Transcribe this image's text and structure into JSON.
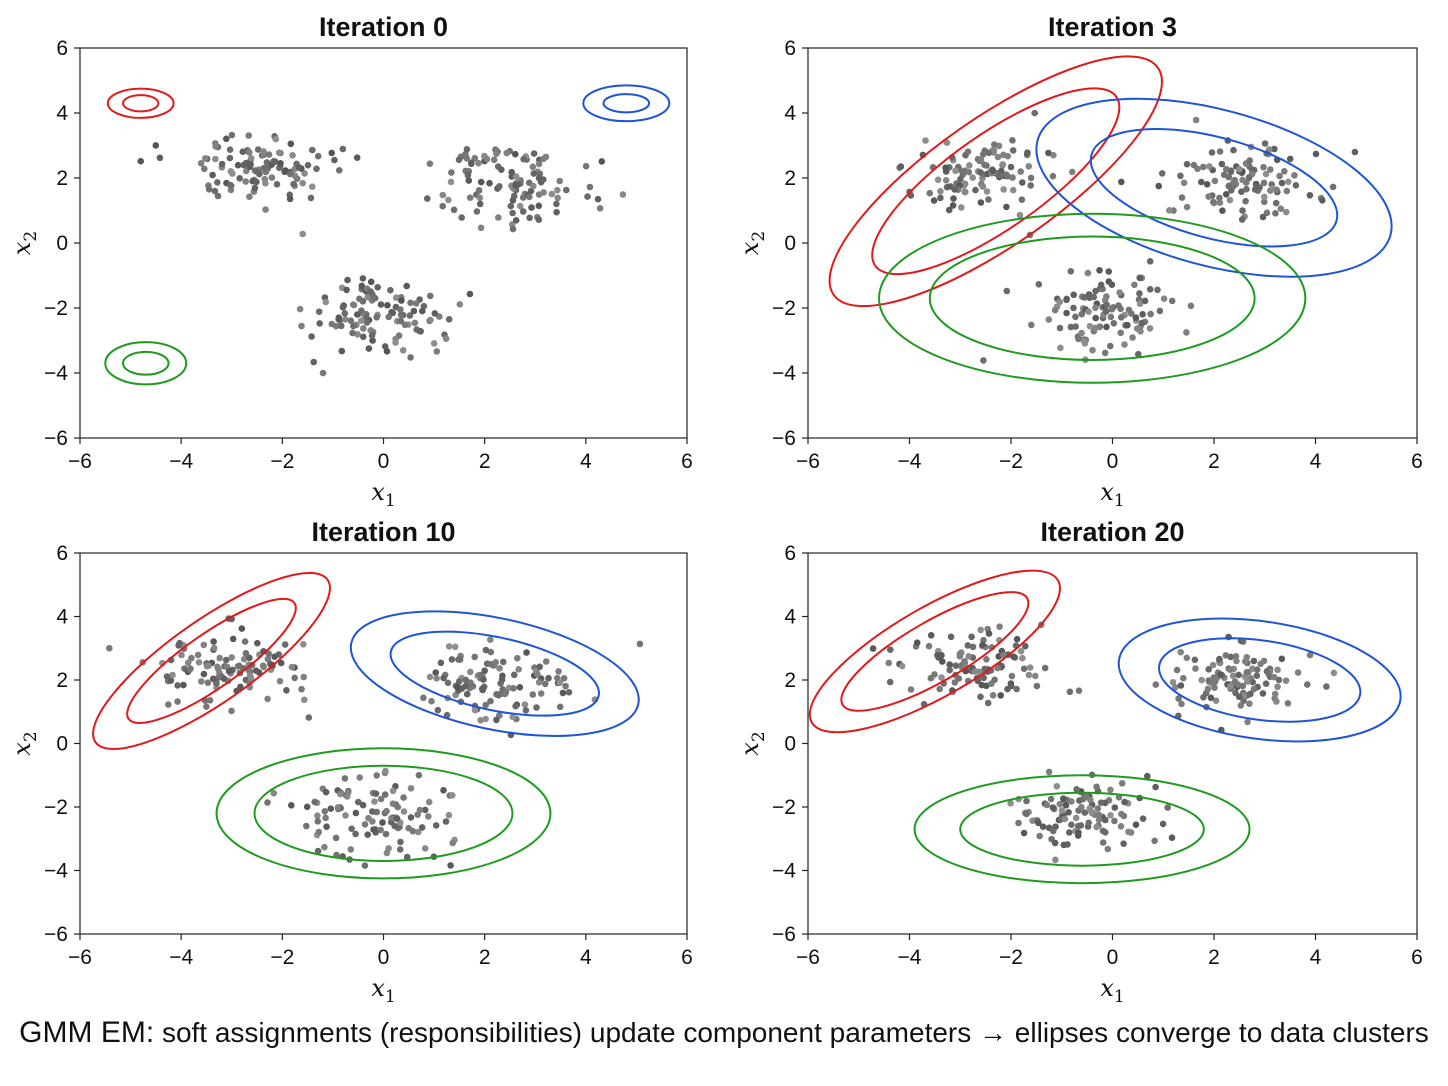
{
  "caption": {
    "lead": "GMM EM:",
    "text": "soft assignments (responsibilities) update component parameters → ellipses converge to data clusters"
  },
  "colors": {
    "red": "#e0191b",
    "blue": "#1f54d6",
    "green": "#1f9a1f",
    "point": "#666666"
  },
  "chart_data": [
    {
      "type": "scatter",
      "title": "Iteration 0",
      "xlabel": "x1",
      "ylabel": "x2",
      "xlim": [
        -6,
        6
      ],
      "ylim": [
        -6,
        6
      ],
      "xticks": [
        "−6",
        "−4",
        "−2",
        "0",
        "2",
        "4",
        "6"
      ],
      "yticks": [
        "−6",
        "−4",
        "−2",
        "0",
        "2",
        "4",
        "6"
      ],
      "clusters": [
        {
          "center": [
            -2.5,
            2.2
          ],
          "spread": [
            0.7,
            0.55
          ]
        },
        {
          "center": [
            2.5,
            1.8
          ],
          "spread": [
            0.75,
            0.6
          ]
        },
        {
          "center": [
            -0.2,
            -2.2
          ],
          "spread": [
            0.7,
            0.65
          ]
        }
      ],
      "components": [
        {
          "color": "red",
          "mean": [
            -4.8,
            4.3
          ],
          "inner": [
            0.35,
            0.25,
            0
          ],
          "outer": [
            0.65,
            0.45,
            0
          ]
        },
        {
          "color": "blue",
          "mean": [
            4.8,
            4.3
          ],
          "inner": [
            0.45,
            0.28,
            0
          ],
          "outer": [
            0.85,
            0.55,
            0
          ]
        },
        {
          "color": "green",
          "mean": [
            -4.7,
            -3.7
          ],
          "inner": [
            0.45,
            0.35,
            0
          ],
          "outer": [
            0.8,
            0.65,
            0
          ]
        }
      ]
    },
    {
      "type": "scatter",
      "title": "Iteration 3",
      "xlabel": "x1",
      "ylabel": "x2",
      "xlim": [
        -6,
        6
      ],
      "ylim": [
        -6,
        6
      ],
      "xticks": [
        "−6",
        "−4",
        "−2",
        "0",
        "2",
        "4",
        "6"
      ],
      "yticks": [
        "−6",
        "−4",
        "−2",
        "0",
        "2",
        "4",
        "6"
      ],
      "clusters": [
        {
          "center": [
            -2.5,
            2.2
          ],
          "spread": [
            0.7,
            0.55
          ]
        },
        {
          "center": [
            2.5,
            1.8
          ],
          "spread": [
            0.75,
            0.6
          ]
        },
        {
          "center": [
            -0.2,
            -2.2
          ],
          "spread": [
            0.7,
            0.65
          ]
        }
      ],
      "components": [
        {
          "color": "red",
          "mean": [
            -2.3,
            1.9
          ],
          "inner": [
            2.9,
            1.45,
            -35
          ],
          "outer": [
            3.9,
            1.95,
            -35
          ]
        },
        {
          "color": "blue",
          "mean": [
            2.0,
            1.7
          ],
          "inner": [
            2.5,
            1.55,
            15
          ],
          "outer": [
            3.6,
            2.4,
            15
          ]
        },
        {
          "color": "green",
          "mean": [
            -0.4,
            -1.7
          ],
          "inner": [
            3.2,
            1.9,
            0
          ],
          "outer": [
            4.2,
            2.6,
            0
          ]
        }
      ]
    },
    {
      "type": "scatter",
      "title": "Iteration 10",
      "xlabel": "x1",
      "ylabel": "x2",
      "xlim": [
        -6,
        6
      ],
      "ylim": [
        -6,
        6
      ],
      "xticks": [
        "−6",
        "−4",
        "−2",
        "0",
        "2",
        "4",
        "6"
      ],
      "yticks": [
        "−6",
        "−4",
        "−2",
        "0",
        "2",
        "4",
        "6"
      ],
      "clusters": [
        {
          "center": [
            -3.0,
            2.4
          ],
          "spread": [
            0.75,
            0.6
          ]
        },
        {
          "center": [
            2.3,
            1.9
          ],
          "spread": [
            0.8,
            0.6
          ]
        },
        {
          "center": [
            -0.1,
            -2.3
          ],
          "spread": [
            0.8,
            0.65
          ]
        }
      ],
      "components": [
        {
          "color": "red",
          "mean": [
            -3.4,
            2.6
          ],
          "inner": [
            2.0,
            0.85,
            -35
          ],
          "outer": [
            2.8,
            1.3,
            -35
          ]
        },
        {
          "color": "blue",
          "mean": [
            2.2,
            2.2
          ],
          "inner": [
            2.1,
            1.15,
            12
          ],
          "outer": [
            2.9,
            1.75,
            12
          ]
        },
        {
          "color": "green",
          "mean": [
            0.0,
            -2.2
          ],
          "inner": [
            2.55,
            1.5,
            0
          ],
          "outer": [
            3.3,
            2.05,
            0
          ]
        }
      ]
    },
    {
      "type": "scatter",
      "title": "Iteration 20",
      "xlabel": "x1",
      "ylabel": "x2",
      "xlim": [
        -6,
        6
      ],
      "ylim": [
        -6,
        6
      ],
      "xticks": [
        "−6",
        "−4",
        "−2",
        "0",
        "2",
        "4",
        "6"
      ],
      "yticks": [
        "−6",
        "−4",
        "−2",
        "0",
        "2",
        "4",
        "6"
      ],
      "clusters": [
        {
          "center": [
            -2.6,
            2.4
          ],
          "spread": [
            0.75,
            0.55
          ]
        },
        {
          "center": [
            2.5,
            2.0
          ],
          "spread": [
            0.7,
            0.55
          ]
        },
        {
          "center": [
            -0.5,
            -2.3
          ],
          "spread": [
            0.65,
            0.6
          ]
        }
      ],
      "components": [
        {
          "color": "red",
          "mean": [
            -3.5,
            2.9
          ],
          "inner": [
            2.1,
            0.95,
            -30
          ],
          "outer": [
            2.8,
            1.4,
            -30
          ]
        },
        {
          "color": "blue",
          "mean": [
            2.9,
            2.0
          ],
          "inner": [
            2.0,
            1.25,
            8
          ],
          "outer": [
            2.8,
            1.85,
            8
          ]
        },
        {
          "color": "green",
          "mean": [
            -0.6,
            -2.7
          ],
          "inner": [
            2.4,
            1.15,
            0
          ],
          "outer": [
            3.3,
            1.7,
            0
          ]
        }
      ]
    }
  ]
}
